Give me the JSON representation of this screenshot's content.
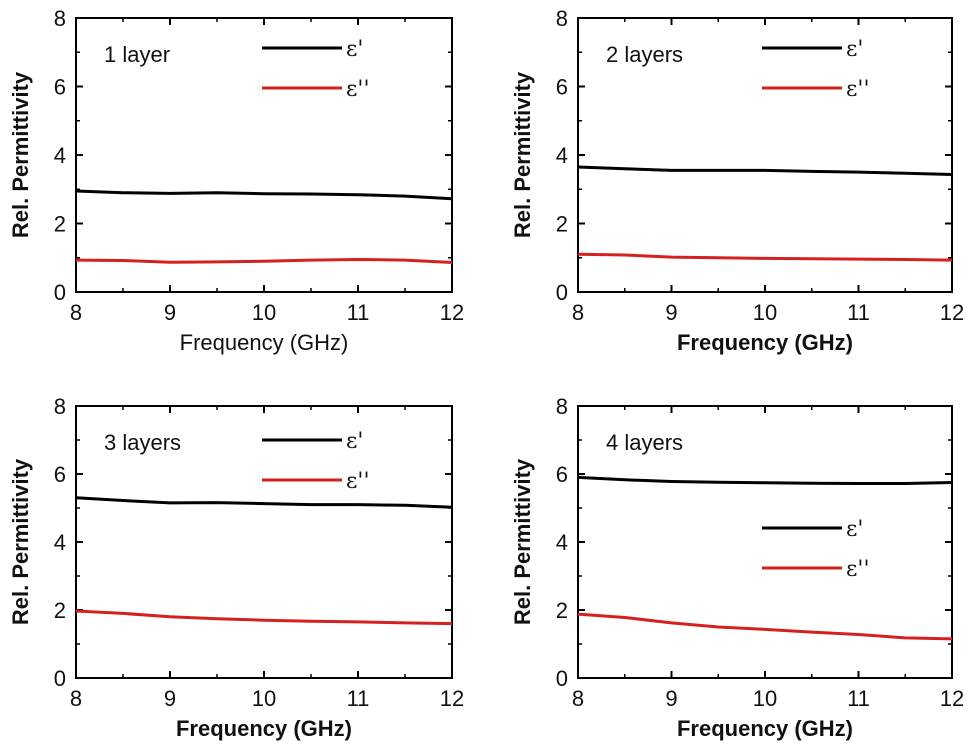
{
  "chart_data": [
    {
      "type": "line",
      "panel_label": "1 layer",
      "xlabel": "Frequency (GHz)",
      "ylabel": "Rel. Permittivity",
      "xlim": [
        8,
        12
      ],
      "ylim": [
        0,
        8
      ],
      "xticks": [
        "8",
        "9",
        "10",
        "11",
        "12"
      ],
      "yticks": [
        "0",
        "2",
        "4",
        "6",
        "8"
      ],
      "legend_placement": "top-right",
      "series": [
        {
          "name": "ε'",
          "color": "#000000",
          "x": [
            8,
            8.5,
            9,
            9.5,
            10,
            10.5,
            11,
            11.5,
            12
          ],
          "values": [
            2.95,
            2.9,
            2.88,
            2.9,
            2.87,
            2.86,
            2.84,
            2.8,
            2.72
          ]
        },
        {
          "name": "ε''",
          "color": "#d62020",
          "x": [
            8,
            8.5,
            9,
            9.5,
            10,
            10.5,
            11,
            11.5,
            12
          ],
          "values": [
            0.93,
            0.92,
            0.87,
            0.88,
            0.9,
            0.93,
            0.95,
            0.93,
            0.86
          ]
        }
      ]
    },
    {
      "type": "line",
      "panel_label": "2 layers",
      "xlabel": "Frequency (GHz)",
      "ylabel": "Rel. Permittivity",
      "xlim": [
        8,
        12
      ],
      "ylim": [
        0,
        8
      ],
      "xticks": [
        "8",
        "9",
        "10",
        "11",
        "12"
      ],
      "yticks": [
        "0",
        "2",
        "4",
        "6",
        "8"
      ],
      "legend_placement": "top-right",
      "series": [
        {
          "name": "ε'",
          "color": "#000000",
          "x": [
            8,
            8.5,
            9,
            9.5,
            10,
            10.5,
            11,
            11.5,
            12
          ],
          "values": [
            3.65,
            3.6,
            3.55,
            3.55,
            3.55,
            3.52,
            3.5,
            3.47,
            3.43
          ]
        },
        {
          "name": "ε''",
          "color": "#d62020",
          "x": [
            8,
            8.5,
            9,
            9.5,
            10,
            10.5,
            11,
            11.5,
            12
          ],
          "values": [
            1.1,
            1.08,
            1.02,
            1.0,
            0.98,
            0.97,
            0.96,
            0.95,
            0.93
          ]
        }
      ]
    },
    {
      "type": "line",
      "panel_label": "3 layers",
      "xlabel": "Frequency (GHz)",
      "ylabel": "Rel. Permittivity",
      "xlim": [
        8,
        12
      ],
      "ylim": [
        0,
        8
      ],
      "xticks": [
        "8",
        "9",
        "10",
        "11",
        "12"
      ],
      "yticks": [
        "0",
        "2",
        "4",
        "6",
        "8"
      ],
      "legend_placement": "top-right",
      "series": [
        {
          "name": "ε'",
          "color": "#000000",
          "x": [
            8,
            8.5,
            9,
            9.5,
            10,
            10.5,
            11,
            11.5,
            12
          ],
          "values": [
            5.3,
            5.22,
            5.15,
            5.16,
            5.13,
            5.1,
            5.1,
            5.08,
            5.02
          ]
        },
        {
          "name": "ε''",
          "color": "#d62020",
          "x": [
            8,
            8.5,
            9,
            9.5,
            10,
            10.5,
            11,
            11.5,
            12
          ],
          "values": [
            1.97,
            1.9,
            1.8,
            1.74,
            1.7,
            1.67,
            1.65,
            1.62,
            1.6
          ]
        }
      ]
    },
    {
      "type": "line",
      "panel_label": "4 layers",
      "xlabel": "Frequency (GHz)",
      "ylabel": "Rel. Permittivity",
      "xlim": [
        8,
        12
      ],
      "ylim": [
        0,
        8
      ],
      "xticks": [
        "8",
        "9",
        "10",
        "11",
        "12"
      ],
      "yticks": [
        "0",
        "2",
        "4",
        "6",
        "8"
      ],
      "legend_placement": "center-right",
      "series": [
        {
          "name": "ε'",
          "color": "#000000",
          "x": [
            8,
            8.5,
            9,
            9.5,
            10,
            10.5,
            11,
            11.5,
            12
          ],
          "values": [
            5.9,
            5.83,
            5.78,
            5.76,
            5.74,
            5.73,
            5.72,
            5.72,
            5.75
          ]
        },
        {
          "name": "ε''",
          "color": "#d62020",
          "x": [
            8,
            8.5,
            9,
            9.5,
            10,
            10.5,
            11,
            11.5,
            12
          ],
          "values": [
            1.88,
            1.78,
            1.62,
            1.5,
            1.43,
            1.35,
            1.28,
            1.18,
            1.15
          ]
        }
      ]
    }
  ]
}
